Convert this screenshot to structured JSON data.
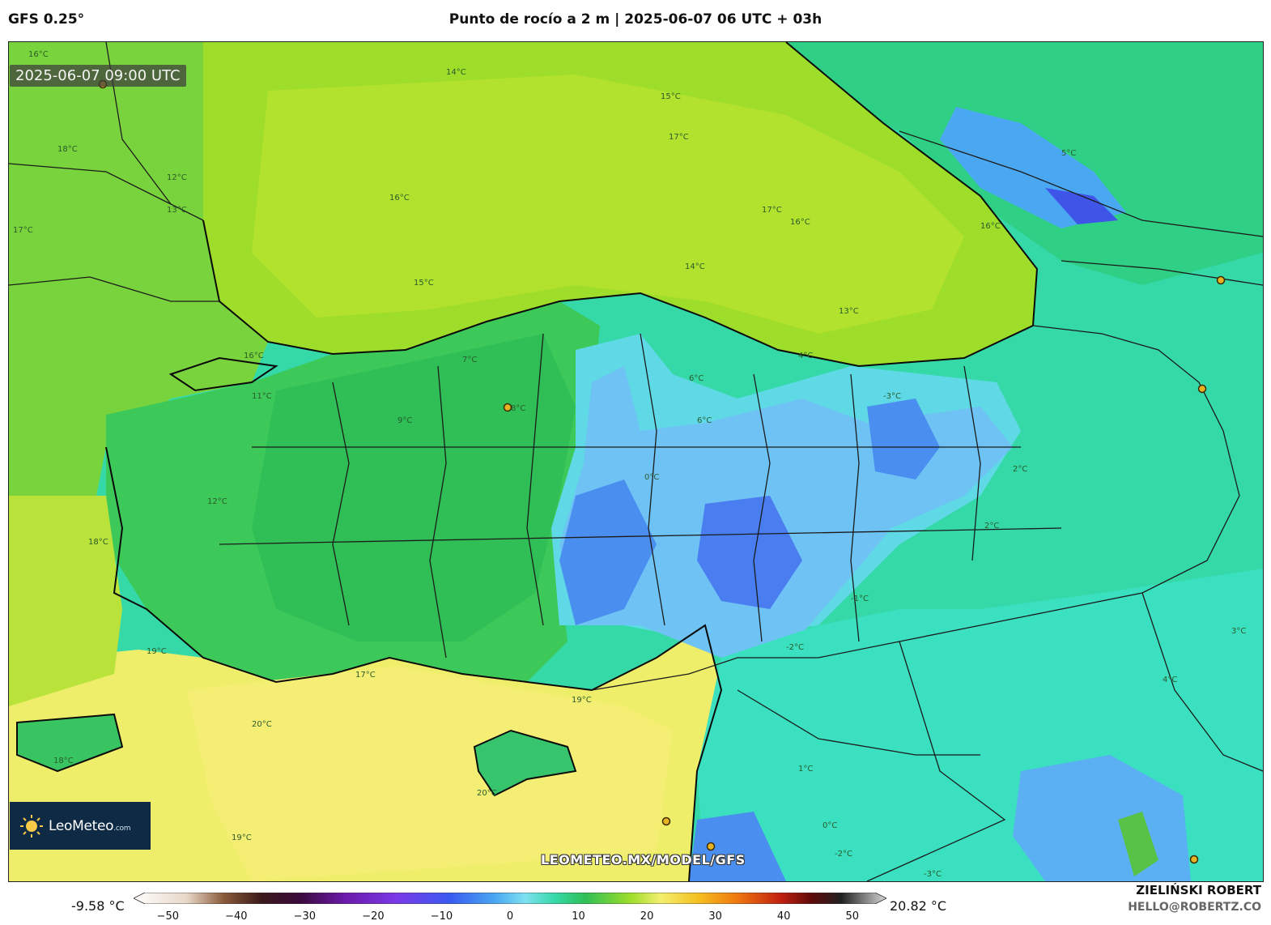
{
  "header": {
    "model": "GFS 0.25°",
    "title": "Punto de rocío a 2 m | 2025-06-07 06 UTC + 03h"
  },
  "map": {
    "timestamp": "2025-06-07 09:00 UTC",
    "watermark": "LEOMETEO.MX/MODEL/GFS",
    "contour_labels": [
      "16°C",
      "14°C",
      "17°C",
      "15°C",
      "16°C",
      "17°C",
      "16°C",
      "16°C",
      "14°C",
      "15°C",
      "13°C",
      "12°C",
      "18°C",
      "17°C",
      "16°C",
      "13°C",
      "11°C",
      "9°C",
      "8°C",
      "7°C",
      "6°C",
      "4°C",
      "2°C",
      "0°C",
      "-1°C",
      "-2°C",
      "-3°C",
      "5°C",
      "12°C",
      "18°C",
      "19°C",
      "17°C",
      "20°C",
      "19°C",
      "20°C",
      "19°C",
      "18°C",
      "1°C",
      "-2°C",
      "-3°C",
      "0°C",
      "2°C",
      "4°C",
      "6°C",
      "3°C"
    ],
    "colors": {
      "sea_north": "#8fd92c",
      "sea_south": "#f3ef6e",
      "land_west": "#3cc95a",
      "land_east": "#35d9a8",
      "dry_blue": "#4fa9f2",
      "very_dry": "#3b5ff0",
      "moist": "#c4e63a"
    }
  },
  "logo": {
    "name": "LeoMeteo",
    "suffix": ".com",
    "icon": "sun-icon"
  },
  "colorbar": {
    "min_label": "-9.58 °C",
    "max_label": "20.82 °C",
    "ticks": [
      "−50",
      "−40",
      "−30",
      "−20",
      "−10",
      "0",
      "10",
      "20",
      "30",
      "40",
      "50"
    ],
    "tick_values": [
      -50,
      -40,
      -30,
      -20,
      -10,
      0,
      10,
      20,
      30,
      40,
      50
    ],
    "range": [
      -55,
      55
    ]
  },
  "credit": {
    "name": "ZIELIŃSKI ROBERT",
    "email": "HELLO@ROBERTZ.CO"
  }
}
